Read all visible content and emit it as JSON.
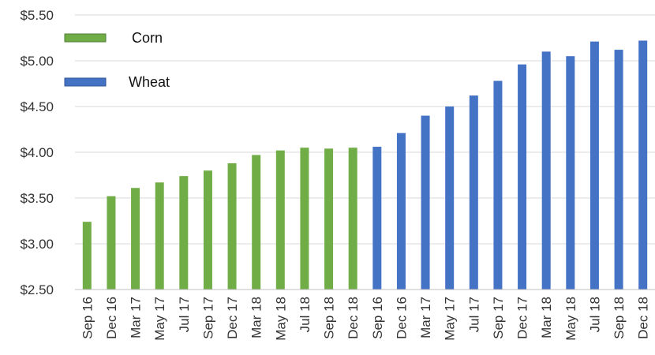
{
  "chart_data": {
    "type": "bar",
    "title": "",
    "xlabel": "",
    "ylabel": "",
    "ylim": [
      2.5,
      5.5
    ],
    "y_ticks": [
      "$2.50",
      "$3.00",
      "$3.50",
      "$4.00",
      "$4.50",
      "$5.00",
      "$5.50"
    ],
    "y_tick_values": [
      2.5,
      3.0,
      3.5,
      4.0,
      4.5,
      5.0,
      5.5
    ],
    "grid": true,
    "legend_position": "top-left",
    "series": [
      {
        "name": "Corn",
        "color": "#70ad47",
        "categories": [
          "Sep 16",
          "Dec 16",
          "Mar 17",
          "May 17",
          "Jul 17",
          "Sep 17",
          "Dec 17",
          "Mar 18",
          "May 18",
          "Jul 18",
          "Sep 18",
          "Dec 18"
        ],
        "values": [
          3.24,
          3.52,
          3.61,
          3.67,
          3.74,
          3.8,
          3.88,
          3.97,
          4.02,
          4.05,
          4.04,
          4.05
        ]
      },
      {
        "name": "Wheat",
        "color": "#4472c4",
        "categories": [
          "Sep 16",
          "Dec 16",
          "Mar 17",
          "May 17",
          "Jul 17",
          "Sep 17",
          "Dec 17",
          "Mar 18",
          "May 18",
          "Jul 18",
          "Sep 18",
          "Dec 18"
        ],
        "values": [
          4.06,
          4.21,
          4.4,
          4.5,
          4.62,
          4.78,
          4.96,
          5.1,
          5.05,
          5.21,
          5.12,
          5.22
        ]
      }
    ]
  }
}
